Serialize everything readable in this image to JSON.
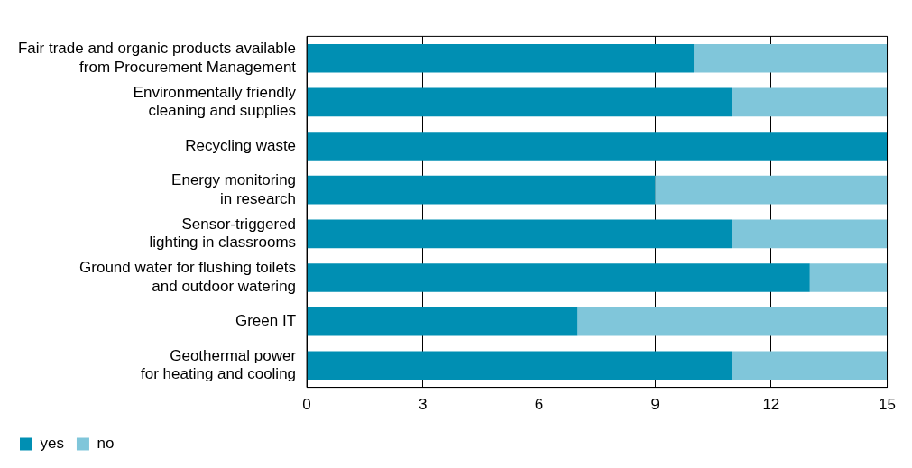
{
  "chart_data": {
    "type": "bar",
    "orientation": "horizontal",
    "stacked": true,
    "categories": [
      "Fair trade and organic products available\nfrom Procurement Management",
      "Environmentally friendly\ncleaning and supplies",
      "Recycling waste",
      "Energy monitoring\nin research",
      "Sensor-triggered\nlighting in classrooms",
      "Ground water for flushing toilets\nand outdoor watering",
      "Green IT",
      "Geothermal power\nfor heating and cooling"
    ],
    "series": [
      {
        "name": "yes",
        "color": "#008fb3",
        "values": [
          10,
          11,
          15,
          9,
          11,
          13,
          7,
          11
        ]
      },
      {
        "name": "no",
        "color": "#80c6da",
        "values": [
          5,
          4,
          0,
          6,
          4,
          2,
          8,
          4
        ]
      }
    ],
    "xlim": [
      0,
      15
    ],
    "xticks": [
      0,
      3,
      6,
      9,
      12,
      15
    ],
    "grid": "x",
    "legend": "bottom left"
  }
}
